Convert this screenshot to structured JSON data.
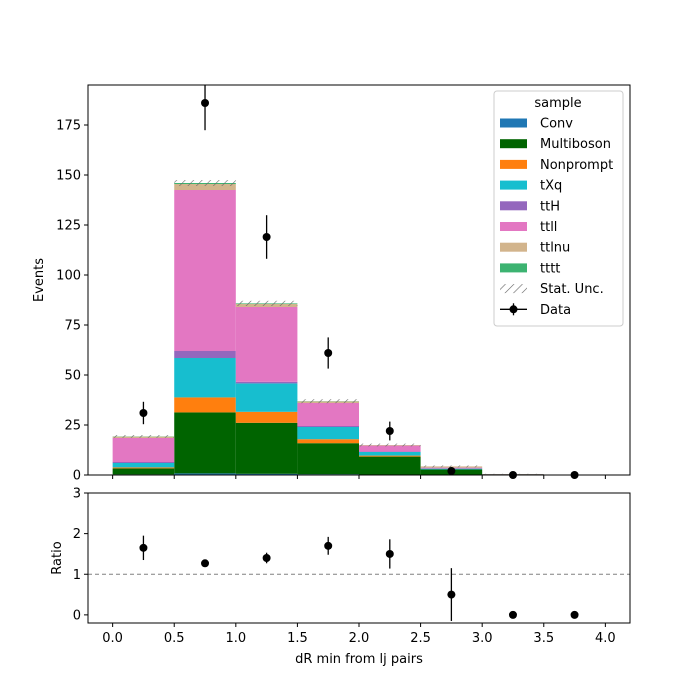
{
  "chart_data": {
    "type": "bar",
    "xlabel": "dR min from lj pairs",
    "top": {
      "ylabel": "Events",
      "xlim": [
        -0.2,
        4.2
      ],
      "ylim": [
        0,
        195
      ],
      "xticks": [
        0.0,
        0.5,
        1.0,
        1.5,
        2.0,
        2.5,
        3.0,
        3.5,
        4.0
      ],
      "xtick_labels": [
        "0.0",
        "0.5",
        "1.0",
        "1.5",
        "2.0",
        "2.5",
        "3.0",
        "3.5",
        "4.0"
      ],
      "yticks": [
        0,
        25,
        50,
        75,
        100,
        125,
        150,
        175
      ],
      "ytick_labels": [
        "0",
        "25",
        "50",
        "75",
        "100",
        "125",
        "150",
        "175"
      ],
      "bin_edges": [
        0.0,
        0.5,
        1.0,
        1.5,
        2.0,
        2.5,
        3.0,
        3.5,
        4.0
      ],
      "stack": [
        {
          "name": "Conv",
          "color": "#1f77b4",
          "values": [
            0.3,
            0.8,
            0.6,
            0.4,
            0.2,
            0.1,
            0.0,
            0.0
          ]
        },
        {
          "name": "Multiboson",
          "color": "#006400",
          "values": [
            3.0,
            30.5,
            25.5,
            15.5,
            9.0,
            2.7,
            0.4,
            0.1
          ]
        },
        {
          "name": "Nonprompt",
          "color": "#ff7f0e",
          "values": [
            0.5,
            7.5,
            5.5,
            2.0,
            0.5,
            0.0,
            0.0,
            0.0
          ]
        },
        {
          "name": "tXq",
          "color": "#17becf",
          "values": [
            2.2,
            19.7,
            14.2,
            6.1,
            1.8,
            0.4,
            0.0,
            0.0
          ]
        },
        {
          "name": "ttH",
          "color": "#9467bd",
          "values": [
            0.5,
            3.5,
            0.8,
            0.5,
            0.2,
            0.0,
            0.0,
            0.0
          ]
        },
        {
          "name": "ttll",
          "color": "#e377c2",
          "values": [
            12.0,
            80.5,
            37.4,
            11.5,
            3.0,
            0.5,
            0.1,
            0.0
          ]
        },
        {
          "name": "ttlnu",
          "color": "#d2b48c",
          "values": [
            0.7,
            3.0,
            1.5,
            0.8,
            0.3,
            0.6,
            0.0,
            0.0
          ]
        },
        {
          "name": "tttt",
          "color": "#3cb371",
          "values": [
            0.1,
            0.5,
            0.3,
            0.1,
            0.0,
            0.0,
            0.0,
            0.0
          ]
        }
      ],
      "stat_unc": [
        0.7,
        1.5,
        1.3,
        1.0,
        0.7,
        0.5,
        0.1,
        0.0
      ],
      "data": {
        "name": "Data",
        "x": [
          0.25,
          0.75,
          1.25,
          1.75,
          2.25,
          2.75,
          3.25,
          3.75
        ],
        "y": [
          31,
          186,
          119,
          61,
          22,
          2,
          0,
          0
        ],
        "err": [
          5.6,
          13.6,
          10.9,
          7.8,
          4.7,
          1.4,
          0.0,
          0.0
        ]
      }
    },
    "ratio": {
      "ylabel": "Ratio",
      "ylim": [
        -0.2,
        3.0
      ],
      "yticks": [
        0,
        1,
        2,
        3
      ],
      "ytick_labels": [
        "0",
        "1",
        "2",
        "3"
      ],
      "reference_line": 1,
      "x": [
        0.25,
        0.75,
        1.25,
        1.75,
        2.25,
        2.75,
        3.25,
        3.75
      ],
      "y": [
        1.65,
        1.27,
        1.4,
        1.7,
        1.5,
        0.5,
        0.0,
        0.0
      ],
      "err": [
        0.3,
        0.09,
        0.13,
        0.22,
        0.36,
        0.65,
        0.0,
        0.0
      ]
    },
    "legend": {
      "title": "sample",
      "placement": "upper-right",
      "stat_label": "Stat. Unc."
    }
  }
}
